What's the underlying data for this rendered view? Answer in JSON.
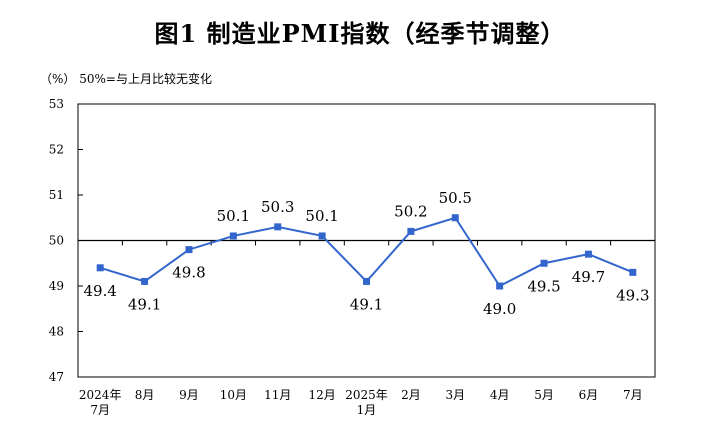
{
  "chart_data": {
    "type": "line",
    "title": "图1  制造业PMI指数（经季节调整）",
    "unit_note": "（%）  50%=与上月比较无变化",
    "categories": [
      [
        "2024年",
        "7月"
      ],
      [
        "8月"
      ],
      [
        "9月"
      ],
      [
        "10月"
      ],
      [
        "11月"
      ],
      [
        "12月"
      ],
      [
        "2025年",
        "1月"
      ],
      [
        "2月"
      ],
      [
        "3月"
      ],
      [
        "4月"
      ],
      [
        "5月"
      ],
      [
        "6月"
      ],
      [
        "7月"
      ]
    ],
    "series": [
      {
        "values": [
          49.4,
          49.1,
          49.8,
          50.1,
          50.3,
          50.1,
          49.1,
          50.2,
          50.5,
          49.0,
          49.5,
          49.7,
          49.3
        ],
        "labels": [
          "49.4",
          "49.1",
          "49.8",
          "50.1",
          "50.3",
          "50.1",
          "49.1",
          "50.2",
          "50.5",
          "49.0",
          "49.5",
          "49.7",
          "49.3"
        ]
      }
    ],
    "label_position": [
      "below",
      "below",
      "below",
      "above",
      "above",
      "above",
      "below",
      "above",
      "above",
      "below",
      "below",
      "below",
      "below"
    ],
    "ylim": [
      47,
      53
    ],
    "yticks": [
      47,
      48,
      49,
      50,
      51,
      52,
      53
    ],
    "reference_line": 50,
    "grid": false,
    "legend": "none",
    "line_color": "#3366cc",
    "marker_color": "#3366cc"
  }
}
